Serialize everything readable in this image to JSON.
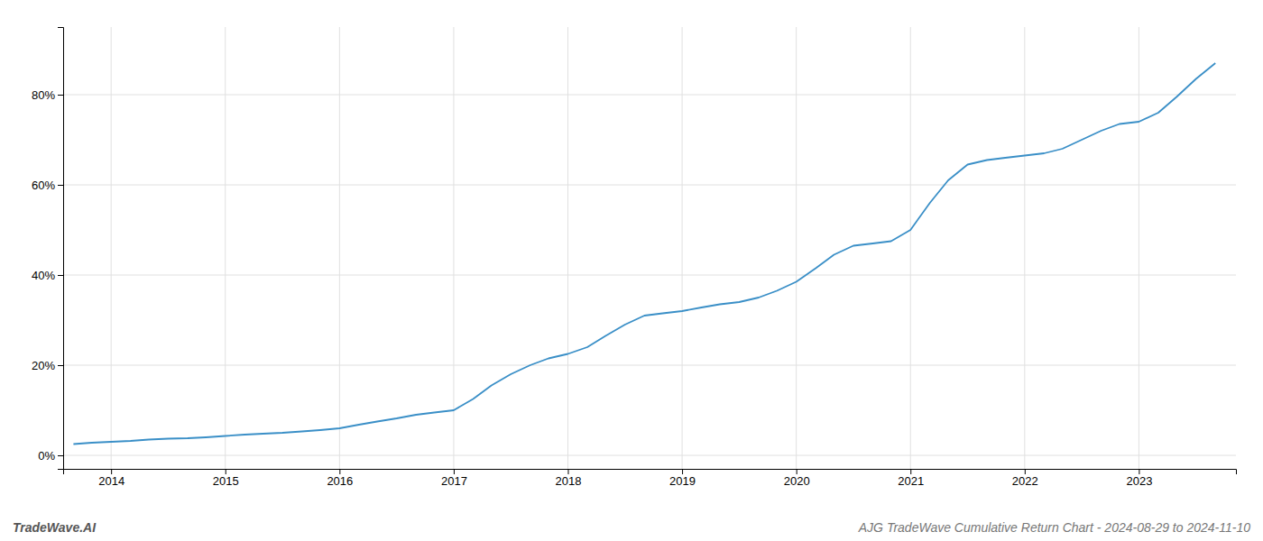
{
  "chart_data": {
    "type": "line",
    "title": "AJG TradeWave Cumulative Return Chart - 2024-08-29 to 2024-11-10",
    "annotations": [
      "TradeWave.AI"
    ],
    "color": "#3a8fc7",
    "grid": true,
    "x": [
      2013.67,
      2013.83,
      2014.0,
      2014.17,
      2014.33,
      2014.5,
      2014.67,
      2014.83,
      2015.0,
      2015.17,
      2015.33,
      2015.5,
      2015.67,
      2015.83,
      2016.0,
      2016.17,
      2016.33,
      2016.5,
      2016.67,
      2016.83,
      2017.0,
      2017.17,
      2017.33,
      2017.5,
      2017.67,
      2017.83,
      2018.0,
      2018.17,
      2018.33,
      2018.5,
      2018.67,
      2018.83,
      2019.0,
      2019.17,
      2019.33,
      2019.5,
      2019.67,
      2019.83,
      2020.0,
      2020.17,
      2020.33,
      2020.5,
      2020.67,
      2020.83,
      2021.0,
      2021.17,
      2021.33,
      2021.5,
      2021.67,
      2021.83,
      2022.0,
      2022.17,
      2022.33,
      2022.5,
      2022.67,
      2022.83,
      2023.0,
      2023.17,
      2023.33,
      2023.5,
      2023.67
    ],
    "values": [
      2.5,
      2.8,
      3.0,
      3.2,
      3.5,
      3.7,
      3.8,
      4.0,
      4.3,
      4.6,
      4.8,
      5.0,
      5.3,
      5.6,
      6.0,
      6.8,
      7.5,
      8.2,
      9.0,
      9.5,
      10.0,
      12.5,
      15.5,
      18.0,
      20.0,
      21.5,
      22.5,
      24.0,
      26.5,
      29.0,
      31.0,
      31.5,
      32.0,
      32.8,
      33.5,
      34.0,
      35.0,
      36.5,
      38.5,
      41.5,
      44.5,
      46.5,
      47.0,
      47.5,
      50.0,
      56.0,
      61.0,
      64.5,
      65.5,
      66.0,
      66.5,
      67.0,
      68.0,
      70.0,
      72.0,
      73.5,
      74.0,
      76.0,
      79.5,
      83.5,
      87.0
    ],
    "xlim": [
      2013.58,
      2023.85
    ],
    "xticks": [
      2014,
      2015,
      2016,
      2017,
      2018,
      2019,
      2020,
      2021,
      2022,
      2023
    ],
    "ylim": [
      -3,
      95
    ],
    "yticks": [
      {
        "value": 0,
        "label": "0%"
      },
      {
        "value": 20,
        "label": "20%"
      },
      {
        "value": 40,
        "label": "40%"
      },
      {
        "value": 60,
        "label": "60%"
      },
      {
        "value": 80,
        "label": "80%"
      }
    ]
  }
}
